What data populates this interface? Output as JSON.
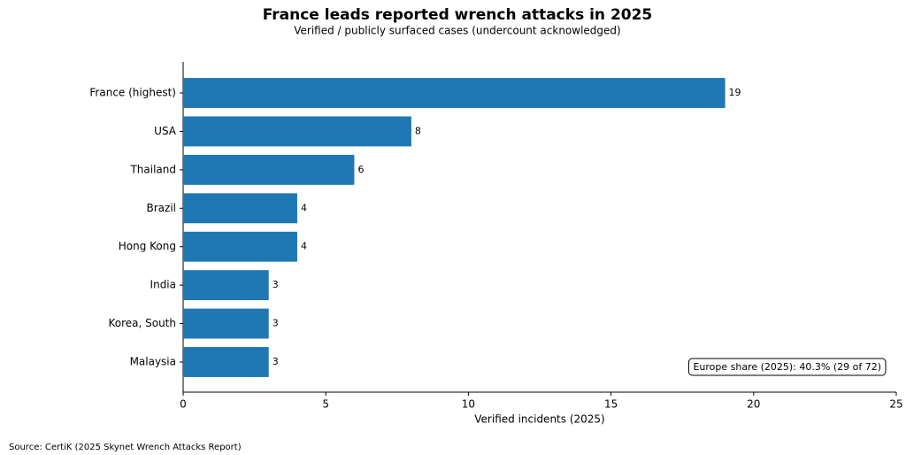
{
  "chart_data": {
    "type": "bar",
    "orientation": "horizontal",
    "title": "France leads reported wrench attacks in 2025",
    "subtitle": "Verified / publicly surfaced cases (undercount acknowledged)",
    "xlabel": "Verified incidents (2025)",
    "categories": [
      "France (highest)",
      "USA",
      "Thailand",
      "Brazil",
      "Hong Kong",
      "India",
      "Korea, South",
      "Malaysia"
    ],
    "values": [
      19,
      8,
      6,
      4,
      4,
      3,
      3,
      3
    ],
    "color": "#1f77b4",
    "xlim": [
      0,
      25
    ],
    "xticks": [
      0,
      5,
      10,
      15,
      20,
      25
    ],
    "grid": false,
    "annotation": "Europe share (2025): 40.3% (29 of 72)",
    "source": "Source: CertiK (2025 Skynet Wrench Attacks Report)"
  }
}
